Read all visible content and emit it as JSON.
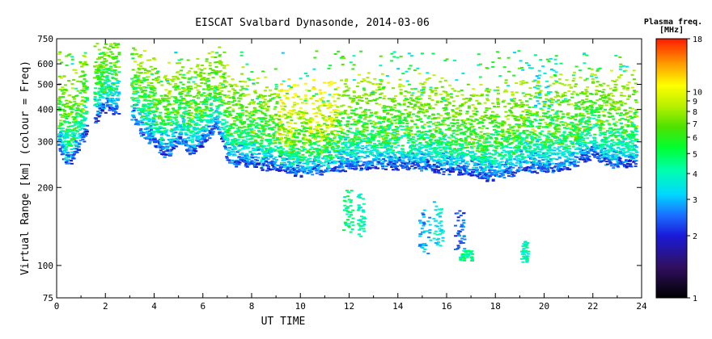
{
  "chart_data": {
    "type": "scatter",
    "title": "EISCAT Svalbard Dynasonde, 2014-03-06",
    "xlabel": "UT TIME",
    "ylabel": "Virtual Range [km] (colour = Freq)",
    "xlim": [
      0,
      24
    ],
    "ylim": [
      75,
      750
    ],
    "yscale": "log",
    "x_ticks": [
      "0",
      "2",
      "4",
      "6",
      "8",
      "10",
      "12",
      "14",
      "16",
      "18",
      "20",
      "22",
      "24"
    ],
    "y_ticks": [
      "75",
      "100",
      "200",
      "300",
      "400",
      "500",
      "600",
      "750"
    ],
    "grid": false,
    "colorbar": {
      "title": "Plasma freq.",
      "unit": "[MHz]",
      "range": [
        1,
        18
      ],
      "scale": "log",
      "ticks": [
        "1",
        "2",
        "3",
        "4",
        "5",
        "6",
        "7",
        "8",
        "9",
        "10",
        "18"
      ]
    },
    "bottom_trace_km": [
      [
        0.0,
        290
      ],
      [
        0.3,
        245
      ],
      [
        0.6,
        250
      ],
      [
        1.0,
        300
      ],
      [
        1.5,
        360
      ],
      [
        2.0,
        400
      ],
      [
        3.0,
        370
      ],
      [
        3.5,
        320
      ],
      [
        4.0,
        290
      ],
      [
        4.3,
        260
      ],
      [
        4.7,
        280
      ],
      [
        5.0,
        300
      ],
      [
        5.5,
        270
      ],
      [
        6.0,
        300
      ],
      [
        6.5,
        340
      ],
      [
        6.8,
        290
      ],
      [
        7.0,
        250
      ],
      [
        8.0,
        245
      ],
      [
        9.0,
        232
      ],
      [
        10.0,
        228
      ],
      [
        11.0,
        232
      ],
      [
        12.0,
        238
      ],
      [
        13.0,
        240
      ],
      [
        14.0,
        240
      ],
      [
        15.0,
        236
      ],
      [
        16.0,
        232
      ],
      [
        17.0,
        222
      ],
      [
        17.5,
        218
      ],
      [
        18.5,
        225
      ],
      [
        19.0,
        235
      ],
      [
        20.0,
        232
      ],
      [
        20.5,
        236
      ],
      [
        21.0,
        238
      ],
      [
        21.7,
        260
      ],
      [
        22.0,
        265
      ],
      [
        22.5,
        245
      ],
      [
        23.0,
        240
      ],
      [
        23.7,
        250
      ]
    ],
    "fragments": [
      {
        "x": [
          11.7,
          12.1
        ],
        "y_km": [
          135,
          200
        ],
        "freq_mhz": 4.5
      },
      {
        "x": [
          12.3,
          12.6
        ],
        "y_km": [
          130,
          190
        ],
        "freq_mhz": 4.0
      },
      {
        "x": [
          14.8,
          15.3
        ],
        "y_km": [
          112,
          165
        ],
        "freq_mhz": 3.0
      },
      {
        "x": [
          15.4,
          15.8
        ],
        "y_km": [
          120,
          185
        ],
        "freq_mhz": 3.5
      },
      {
        "x": [
          16.3,
          16.7
        ],
        "y_km": [
          115,
          165
        ],
        "freq_mhz": 2.5
      },
      {
        "x": [
          16.5,
          17.0
        ],
        "y_km": [
          105,
          115
        ],
        "freq_mhz": 4.5
      },
      {
        "x": [
          19.0,
          19.3
        ],
        "y_km": [
          103,
          125
        ],
        "freq_mhz": 4.0
      },
      {
        "x": [
          19.5,
          20.5
        ],
        "y_km": [
          360,
          640
        ],
        "freq_mhz": 3.5
      }
    ]
  }
}
